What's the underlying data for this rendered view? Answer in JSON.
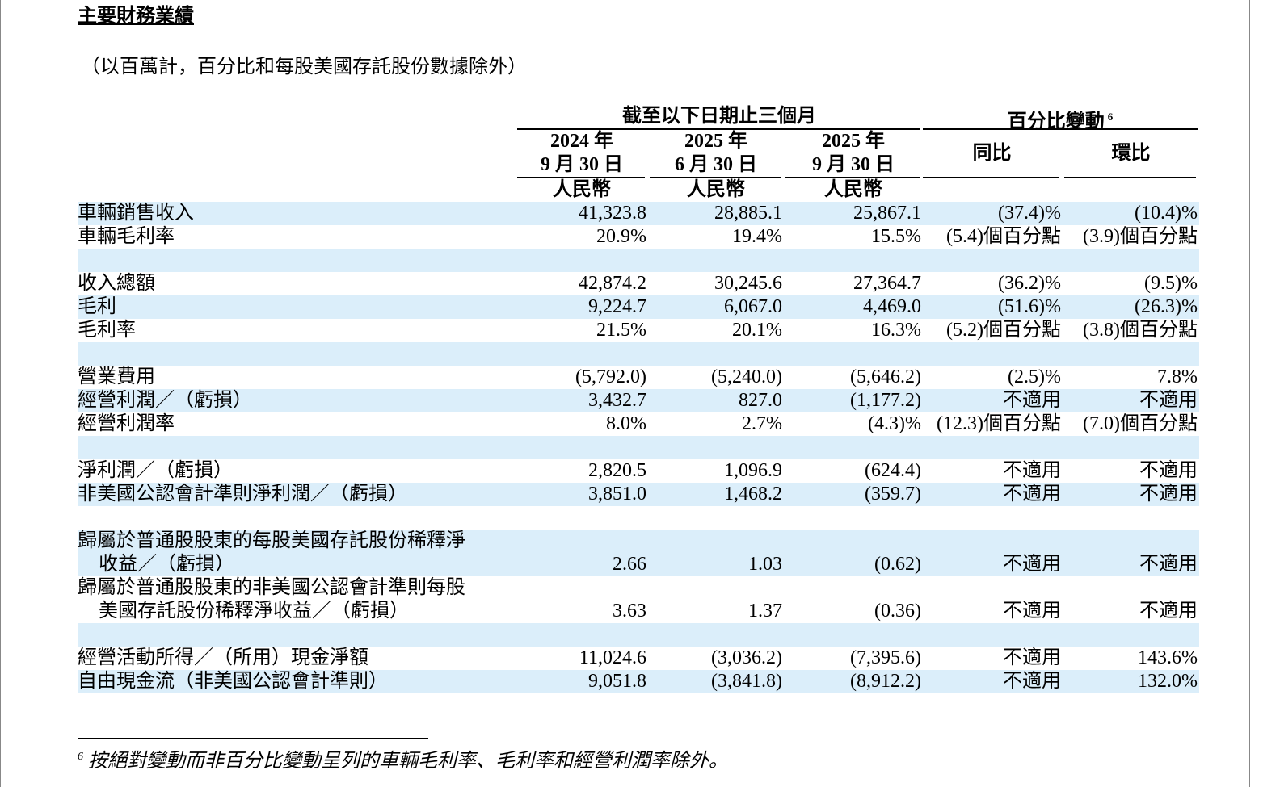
{
  "header": {
    "title": "主要財務業績",
    "subtitle": "（以百萬計，百分比和每股美國存託股份數據除外）"
  },
  "table": {
    "group_headers": [
      {
        "text": "截至以下日期止三個月"
      },
      {
        "text": "百分比變動",
        "superscript": "6"
      }
    ],
    "period_columns": [
      {
        "year": "2024 年",
        "date": "9 月 30 日",
        "currency": "人民幣"
      },
      {
        "year": "2025 年",
        "date": "6 月 30 日",
        "currency": "人民幣"
      },
      {
        "year": "2025 年",
        "date": "9 月 30 日",
        "currency": "人民幣"
      }
    ],
    "change_columns": [
      "同比",
      "環比"
    ],
    "sections": [
      [
        {
          "label": [
            "車輛銷售收入"
          ],
          "cells": [
            "41,323.8",
            "28,885.1",
            "25,867.1",
            "(37.4)%",
            "(10.4)%"
          ]
        },
        {
          "label": [
            "車輛毛利率"
          ],
          "cells": [
            "20.9%",
            "19.4%",
            "15.5%",
            "(5.4)個百分點",
            "(3.9)個百分點"
          ]
        }
      ],
      [
        {
          "label": [
            "收入總額"
          ],
          "cells": [
            "42,874.2",
            "30,245.6",
            "27,364.7",
            "(36.2)%",
            "(9.5)%"
          ]
        },
        {
          "label": [
            "毛利"
          ],
          "cells": [
            "9,224.7",
            "6,067.0",
            "4,469.0",
            "(51.6)%",
            "(26.3)%"
          ]
        },
        {
          "label": [
            "毛利率"
          ],
          "cells": [
            "21.5%",
            "20.1%",
            "16.3%",
            "(5.2)個百分點",
            "(3.8)個百分點"
          ]
        }
      ],
      [
        {
          "label": [
            "營業費用"
          ],
          "cells": [
            "(5,792.0)",
            "(5,240.0)",
            "(5,646.2)",
            "(2.5)%",
            "7.8%"
          ]
        },
        {
          "label": [
            "經營利潤／（虧損）"
          ],
          "cells": [
            "3,432.7",
            "827.0",
            "(1,177.2)",
            "不適用",
            "不適用"
          ]
        },
        {
          "label": [
            "經營利潤率"
          ],
          "cells": [
            "8.0%",
            "2.7%",
            "(4.3)%",
            "(12.3)個百分點",
            "(7.0)個百分點"
          ]
        }
      ],
      [
        {
          "label": [
            "淨利潤／（虧損）"
          ],
          "cells": [
            "2,820.5",
            "1,096.9",
            "(624.4)",
            "不適用",
            "不適用"
          ]
        },
        {
          "label": [
            "非美國公認會計準則淨利潤／（虧損）"
          ],
          "cells": [
            "3,851.0",
            "1,468.2",
            "(359.7)",
            "不適用",
            "不適用"
          ]
        }
      ],
      [
        {
          "label": [
            "歸屬於普通股股東的每股美國存託股份稀釋淨",
            "收益／（虧損）"
          ],
          "cells": [
            "2.66",
            "1.03",
            "(0.62)",
            "不適用",
            "不適用"
          ]
        },
        {
          "label": [
            "歸屬於普通股股東的非美國公認會計準則每股",
            "美國存託股份稀釋淨收益／（虧損）"
          ],
          "cells": [
            "3.63",
            "1.37",
            "(0.36)",
            "不適用",
            "不適用"
          ]
        }
      ],
      [
        {
          "label": [
            "經營活動所得／（所用）現金淨額"
          ],
          "cells": [
            "11,024.6",
            "(3,036.2)",
            "(7,395.6)",
            "不適用",
            "143.6%"
          ]
        },
        {
          "label": [
            "自由現金流（非美國公認會計準則）"
          ],
          "cells": [
            "9,051.8",
            "(3,841.8)",
            "(8,912.2)",
            "不適用",
            "132.0%"
          ]
        }
      ]
    ]
  },
  "footnote": {
    "marker": "6",
    "text": "按絕對變動而非百分比變動呈列的車輛毛利率、毛利率和經營利潤率除外。"
  }
}
